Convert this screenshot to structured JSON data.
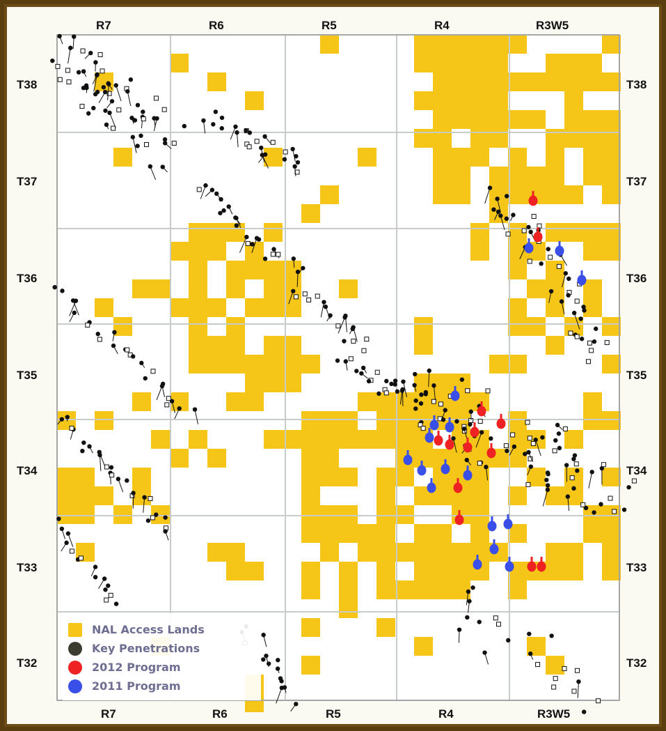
{
  "ranges_top": [
    "R7",
    "R6",
    "R5",
    "R4",
    "R3W5"
  ],
  "ranges_bottom": [
    "R7",
    "R6",
    "R5",
    "R4",
    "R3W5"
  ],
  "townships_left": [
    "T38",
    "T37",
    "T36",
    "T35",
    "T34",
    "T33",
    "T32"
  ],
  "townships_right": [
    "T38",
    "T37",
    "T36",
    "T35",
    "T34",
    "T33",
    "T32"
  ],
  "legend": [
    {
      "label": "NAL Access Lands",
      "symbol": "square",
      "color": "#f5c518"
    },
    {
      "label": "Key Penetrations",
      "symbol": "circle",
      "color": "#3c3c32"
    },
    {
      "label": "2012 Program",
      "symbol": "circle",
      "color": "#ee2222"
    },
    {
      "label": "2011 Program",
      "symbol": "circle",
      "color": "#3a4ee8"
    }
  ],
  "colors": {
    "land": "#f5c518",
    "grid": "#c8ccc8",
    "well": "#111111",
    "program_2012": "#ee2222",
    "program_2011": "#3a4ee8",
    "frame": "#6b4c16"
  }
}
